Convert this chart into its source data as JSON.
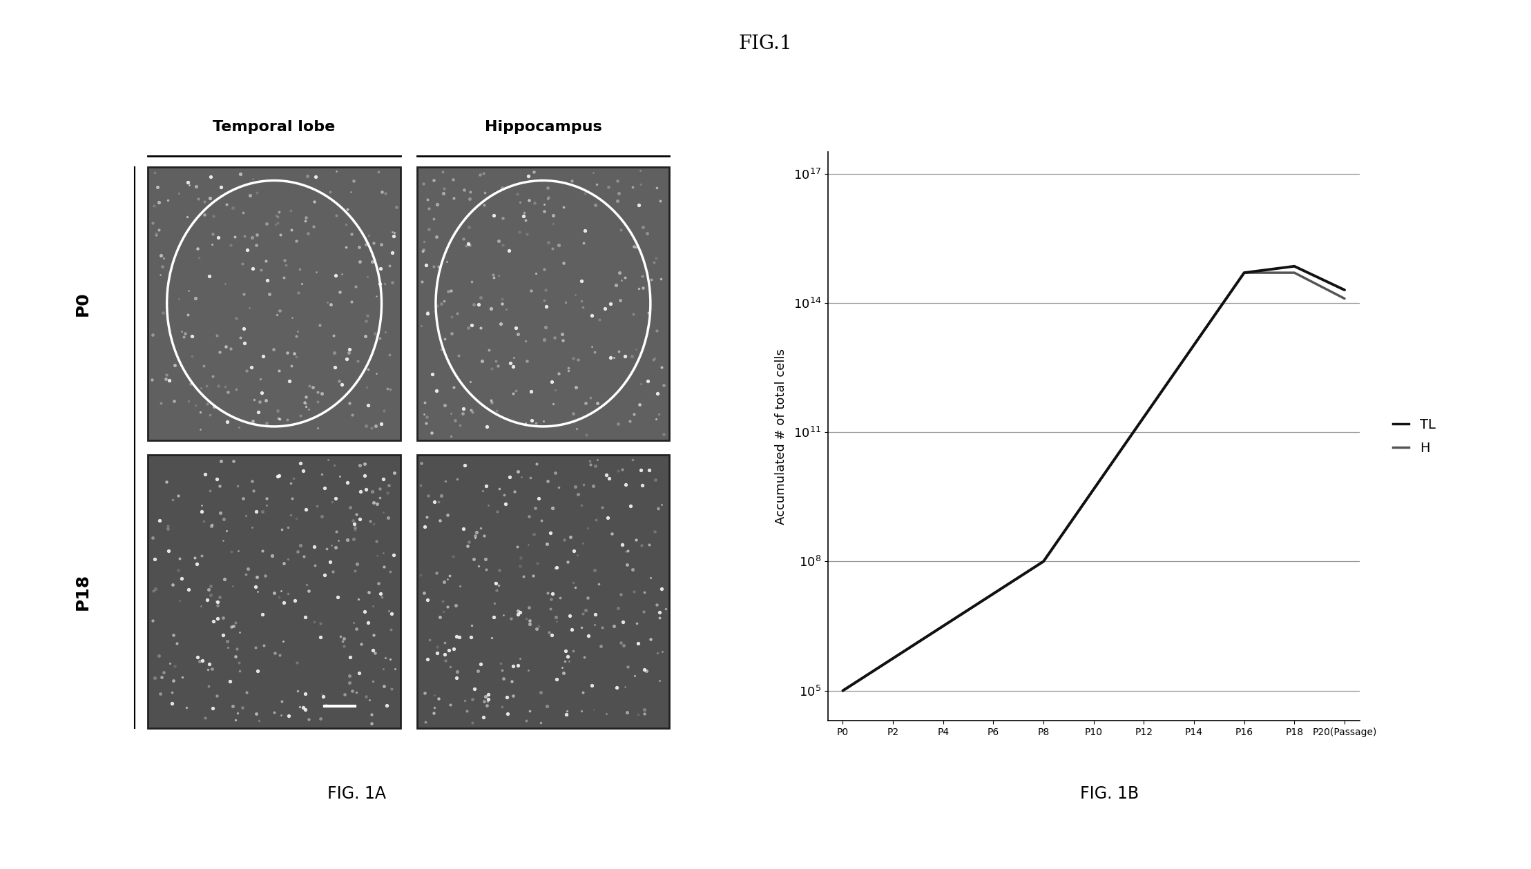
{
  "title": "FIG.1",
  "fig1a_label": "FIG. 1A",
  "fig1b_label": "FIG. 1B",
  "col_labels": [
    "Temporal lobe",
    "Hippocampus"
  ],
  "row_labels": [
    "P0",
    "P18"
  ],
  "chart_ylabel": "Accumulated # of total cells",
  "chart_xlabel_items": [
    "P0",
    "P2",
    "P4",
    "P6",
    "P8",
    "P10",
    "P12",
    "P14",
    "P16",
    "P18",
    "P20(Passage)"
  ],
  "ytick_values": [
    5,
    8,
    11,
    14,
    17
  ],
  "TL_x_idx": [
    0,
    4,
    8,
    9,
    10
  ],
  "TL_y": [
    5.0,
    8.0,
    14.7,
    14.85,
    14.3
  ],
  "H_x_idx": [
    0,
    4,
    8,
    9,
    10
  ],
  "H_y": [
    5.0,
    8.0,
    14.7,
    14.7,
    14.1
  ],
  "line_color_TL": "#111111",
  "line_color_H": "#555555",
  "bg_color": "#ffffff",
  "grid_color": "#999999",
  "img_gray_dark": "#4a4a4a",
  "img_gray_mid": "#888888"
}
